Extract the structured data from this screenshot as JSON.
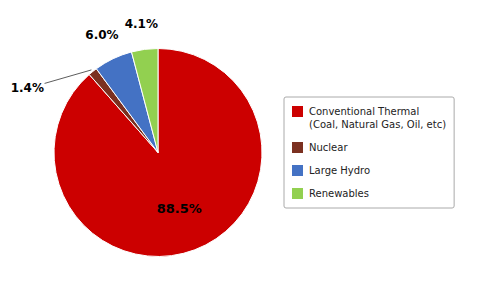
{
  "chart_data": {
    "type": "pie",
    "categories": [
      "Conventional Thermal\n(Coal, Natural Gas, Oil, etc)",
      "Nuclear",
      "Large Hydro",
      "Renewables"
    ],
    "values": [
      88.5,
      1.4,
      6.0,
      4.1
    ],
    "value_labels": [
      "88.5%",
      "1.4%",
      "6.0%",
      "4.1%"
    ],
    "colors": [
      "#CC0000",
      "#7B3020",
      "#4472C4",
      "#92D050"
    ],
    "data_labels": true,
    "legend": "right"
  }
}
